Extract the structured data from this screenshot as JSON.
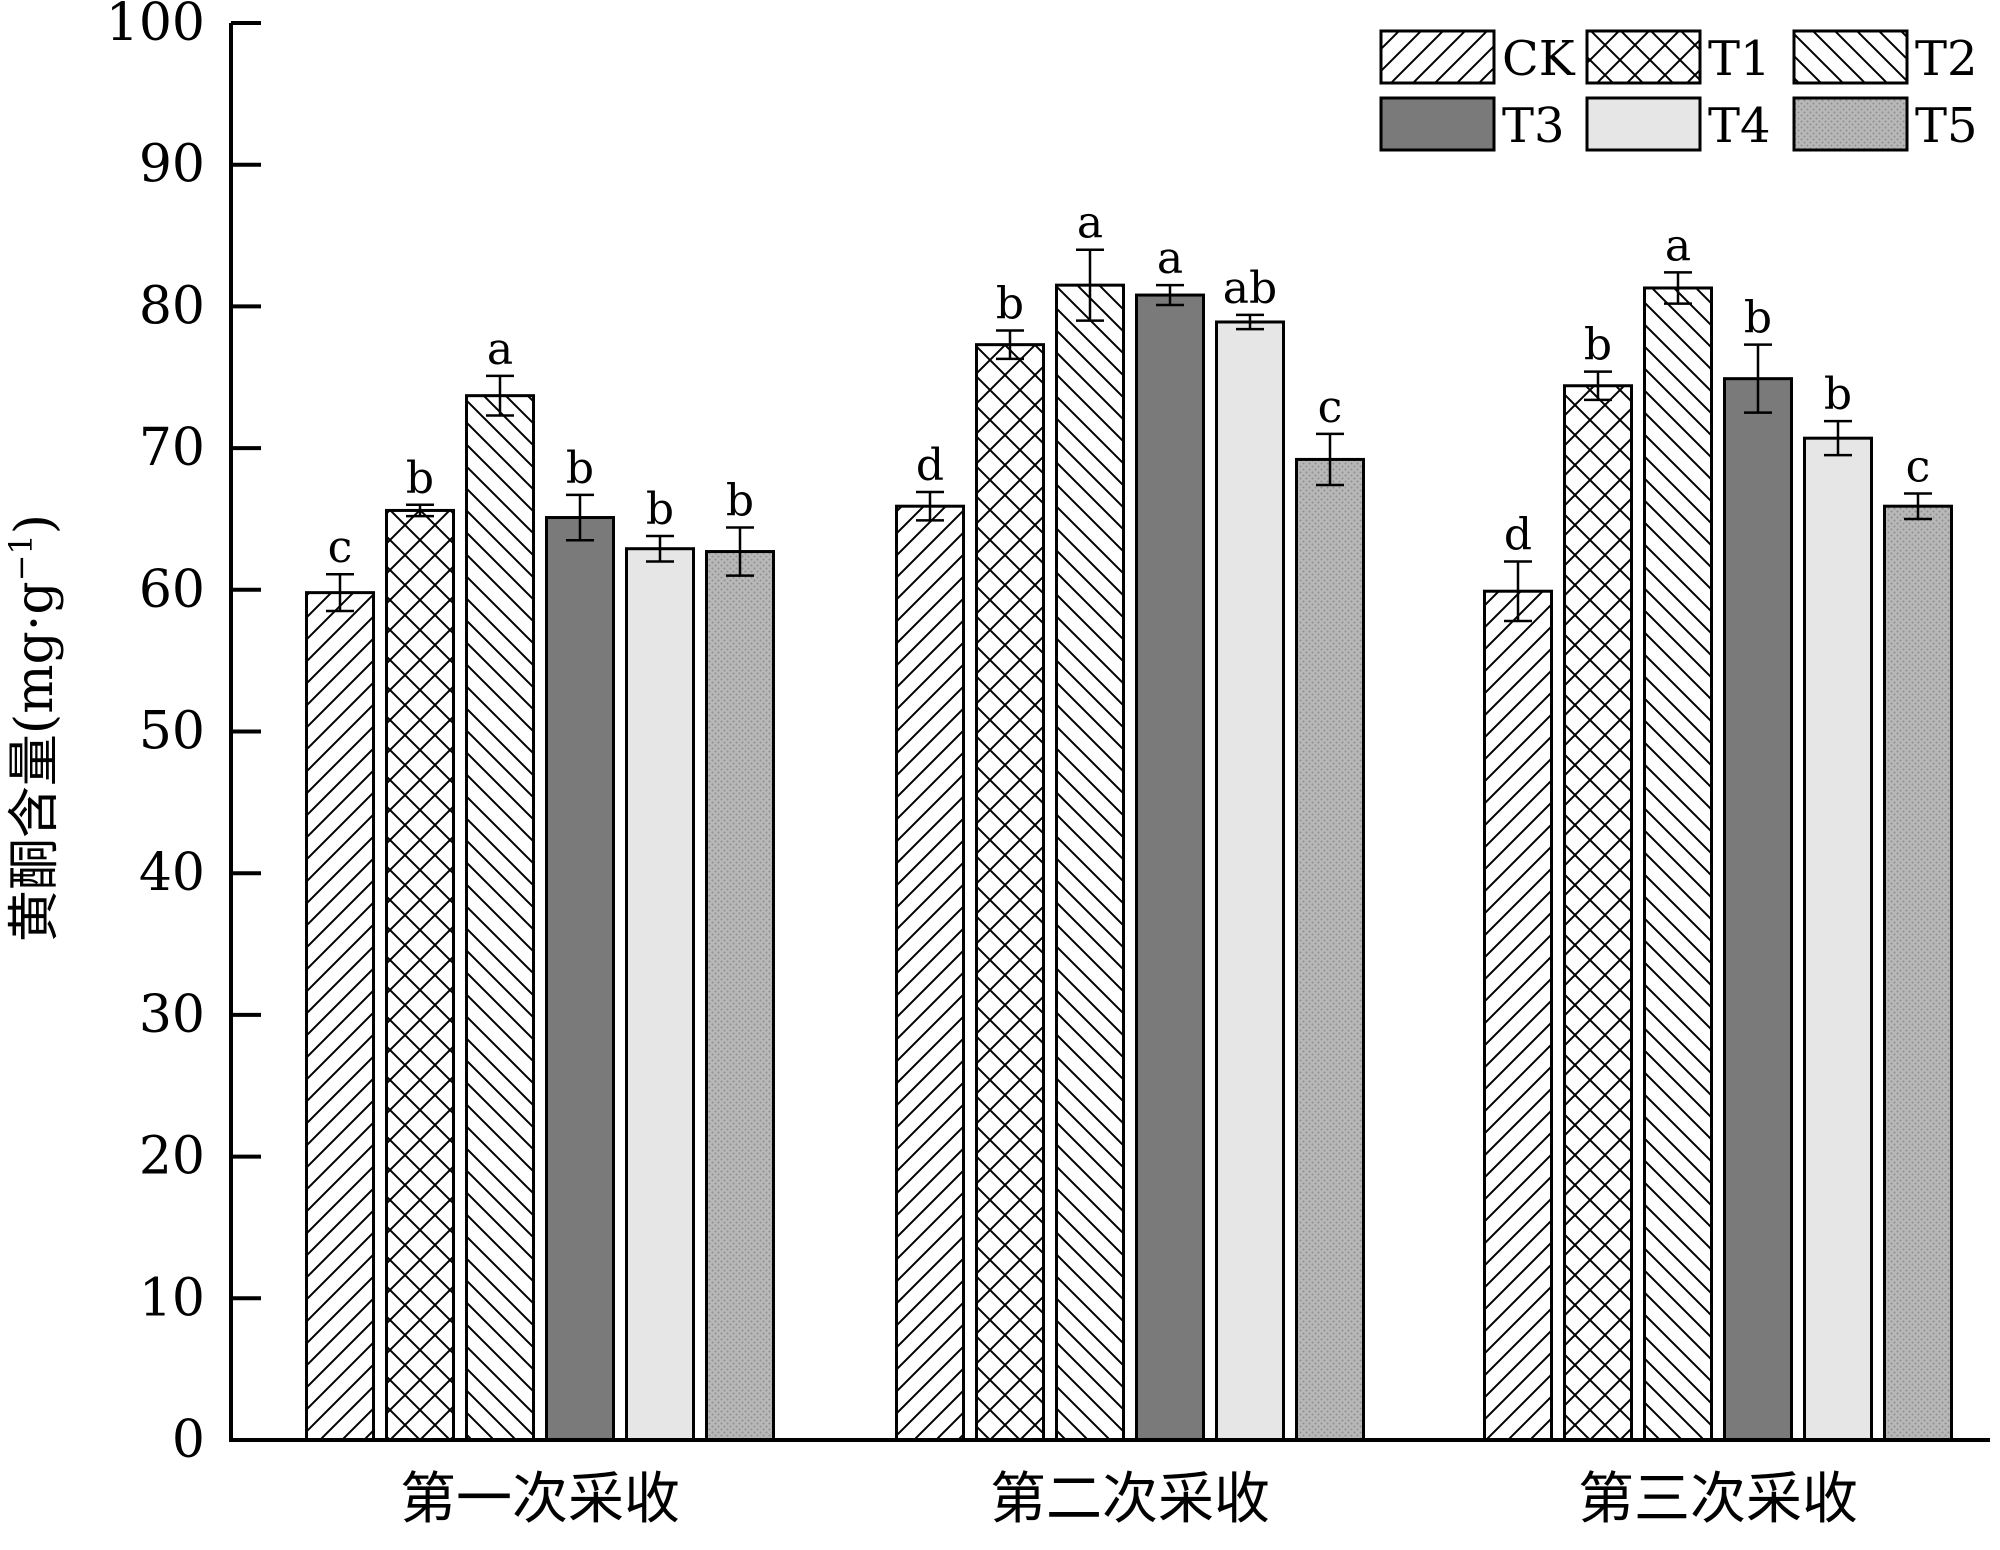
{
  "chart_data": {
    "type": "bar",
    "title": "",
    "xlabel": "",
    "ylabel": {
      "text": "黄酮含量",
      "unit_open": "(mg·g",
      "unit_sup": "−1",
      "unit_close": ")"
    },
    "ylim": [
      0,
      100
    ],
    "yticks": [
      0,
      10,
      20,
      30,
      40,
      50,
      60,
      70,
      80,
      90,
      100
    ],
    "categories": [
      "第一次采收",
      "第二次采收",
      "第三次采收"
    ],
    "legend_position": "top-right",
    "series": [
      {
        "name": "CK",
        "pattern": "diag-right",
        "values": [
          59.8,
          65.9,
          59.9
        ],
        "errors": [
          1.3,
          1.0,
          2.1
        ],
        "letters": [
          "c",
          "d",
          "d"
        ]
      },
      {
        "name": "T1",
        "pattern": "crosshatch",
        "values": [
          65.6,
          77.3,
          74.4
        ],
        "errors": [
          0.4,
          1.0,
          1.0
        ],
        "letters": [
          "b",
          "b",
          "b"
        ]
      },
      {
        "name": "T2",
        "pattern": "diag-left",
        "values": [
          73.7,
          81.5,
          81.3
        ],
        "errors": [
          1.4,
          2.5,
          1.1
        ],
        "letters": [
          "a",
          "a",
          "a"
        ]
      },
      {
        "name": "T3",
        "pattern": "solid-dark",
        "values": [
          65.1,
          80.8,
          74.9
        ],
        "errors": [
          1.6,
          0.7,
          2.4
        ],
        "letters": [
          "b",
          "a",
          "b"
        ]
      },
      {
        "name": "T4",
        "pattern": "solid-light",
        "values": [
          62.9,
          78.9,
          70.7
        ],
        "errors": [
          0.9,
          0.5,
          1.2
        ],
        "letters": [
          "b",
          "ab",
          "b"
        ]
      },
      {
        "name": "T5",
        "pattern": "dotted-gray",
        "values": [
          62.7,
          69.2,
          65.9
        ],
        "errors": [
          1.7,
          1.8,
          0.9
        ],
        "letters": [
          "b",
          "c",
          "c"
        ]
      }
    ]
  },
  "colors": {
    "axis": "#000000",
    "bar_stroke": "#000000",
    "solid_dark": "#7a7a7a",
    "solid_light": "#e6e6e6",
    "dotted_base": "#b8b8b8",
    "dotted_dot": "#8f8f8f"
  }
}
